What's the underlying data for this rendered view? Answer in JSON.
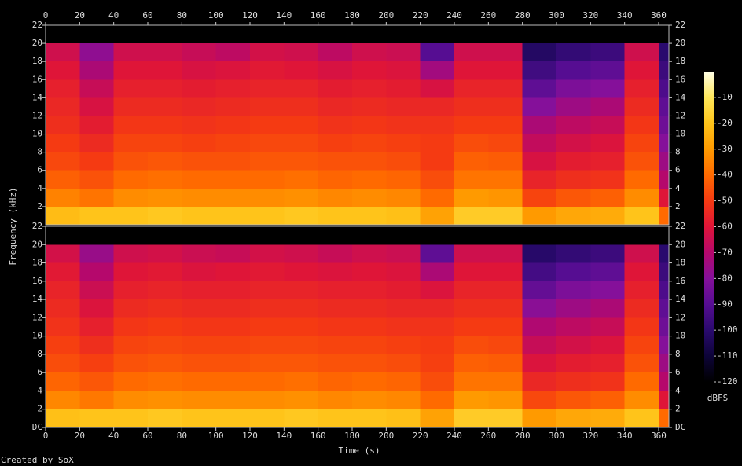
{
  "chart_data": [
    {
      "type": "heatmap",
      "xbins": [
        0,
        20,
        40,
        60,
        80,
        100,
        120,
        140,
        160,
        180,
        200,
        220,
        240,
        260,
        280,
        300,
        320,
        340,
        360,
        366
      ],
      "ybins": [
        0,
        2,
        4,
        6,
        8,
        10,
        12,
        14,
        16,
        18,
        20,
        22
      ],
      "xlim": [
        0,
        366
      ],
      "ylim": [
        0,
        22
      ],
      "xticks": [
        0,
        20,
        40,
        60,
        80,
        100,
        120,
        140,
        160,
        180,
        200,
        220,
        240,
        260,
        280,
        300,
        320,
        340,
        360
      ],
      "yticks": [
        2,
        4,
        6,
        8,
        10,
        12,
        14,
        16,
        18,
        20,
        22
      ],
      "values": [
        [
          -22,
          -35,
          -42,
          -47,
          -50,
          -53,
          -55,
          -57,
          -60,
          -64,
          -120
        ],
        [
          -20,
          -38,
          -45,
          -50,
          -54,
          -58,
          -62,
          -66,
          -72,
          -78,
          -120
        ],
        [
          -20,
          -33,
          -40,
          -45,
          -48,
          -51,
          -54,
          -57,
          -60,
          -64,
          -120
        ],
        [
          -19,
          -32,
          -39,
          -44,
          -48,
          -51,
          -54,
          -57,
          -60,
          -64,
          -120
        ],
        [
          -20,
          -33,
          -40,
          -45,
          -49,
          -52,
          -55,
          -58,
          -62,
          -66,
          -120
        ],
        [
          -20,
          -33,
          -40,
          -45,
          -48,
          -51,
          -54,
          -57,
          -61,
          -68,
          -120
        ],
        [
          -20,
          -33,
          -40,
          -44,
          -47,
          -50,
          -53,
          -56,
          -59,
          -63,
          -120
        ],
        [
          -19,
          -32,
          -39,
          -44,
          -47,
          -50,
          -53,
          -56,
          -60,
          -64,
          -120
        ],
        [
          -20,
          -34,
          -41,
          -45,
          -49,
          -52,
          -55,
          -58,
          -62,
          -68,
          -120
        ],
        [
          -20,
          -33,
          -40,
          -45,
          -48,
          -51,
          -54,
          -57,
          -60,
          -64,
          -120
        ],
        [
          -21,
          -34,
          -41,
          -46,
          -49,
          -52,
          -55,
          -58,
          -61,
          -65,
          -120
        ],
        [
          -28,
          -40,
          -46,
          -50,
          -50,
          -52,
          -55,
          -62,
          -74,
          -90,
          -120
        ],
        [
          -18,
          -30,
          -38,
          -42,
          -46,
          -50,
          -53,
          -56,
          -60,
          -64,
          -120
        ],
        [
          -18,
          -31,
          -38,
          -43,
          -47,
          -50,
          -53,
          -56,
          -60,
          -64,
          -120
        ],
        [
          -30,
          -48,
          -56,
          -62,
          -67,
          -72,
          -80,
          -88,
          -95,
          -102,
          -120
        ],
        [
          -27,
          -44,
          -53,
          -58,
          -63,
          -68,
          -75,
          -82,
          -90,
          -98,
          -120
        ],
        [
          -26,
          -42,
          -52,
          -57,
          -61,
          -66,
          -72,
          -80,
          -88,
          -96,
          -120
        ],
        [
          -20,
          -33,
          -40,
          -45,
          -48,
          -51,
          -54,
          -57,
          -60,
          -64,
          -120
        ],
        [
          -40,
          -60,
          -70,
          -75,
          -80,
          -85,
          -88,
          -92,
          -96,
          -100,
          -120
        ]
      ]
    },
    {
      "type": "heatmap",
      "xlabel": "Time (s)",
      "xbins": [
        0,
        20,
        40,
        60,
        80,
        100,
        120,
        140,
        160,
        180,
        200,
        220,
        240,
        260,
        280,
        300,
        320,
        340,
        360,
        366
      ],
      "ybins": [
        0,
        2,
        4,
        6,
        8,
        10,
        12,
        14,
        16,
        18,
        20,
        22
      ],
      "xlim": [
        0,
        366
      ],
      "ylim": [
        0,
        22
      ],
      "xticks": [
        0,
        20,
        40,
        60,
        80,
        100,
        120,
        140,
        160,
        180,
        200,
        220,
        240,
        260,
        280,
        300,
        320,
        340,
        360
      ],
      "yticks": [
        {
          "value": 0,
          "label": "DC"
        },
        2,
        4,
        6,
        8,
        10,
        12,
        14,
        16,
        18,
        20,
        22
      ],
      "values": [
        [
          -21,
          -34,
          -41,
          -46,
          -49,
          -52,
          -54,
          -56,
          -59,
          -63,
          -120
        ],
        [
          -20,
          -37,
          -44,
          -49,
          -53,
          -57,
          -61,
          -65,
          -70,
          -76,
          -120
        ],
        [
          -20,
          -33,
          -40,
          -45,
          -48,
          -51,
          -54,
          -57,
          -60,
          -64,
          -120
        ],
        [
          -19,
          -32,
          -39,
          -44,
          -47,
          -50,
          -53,
          -56,
          -59,
          -63,
          -120
        ],
        [
          -20,
          -33,
          -40,
          -45,
          -48,
          -51,
          -54,
          -57,
          -61,
          -65,
          -120
        ],
        [
          -20,
          -33,
          -40,
          -45,
          -48,
          -51,
          -54,
          -57,
          -60,
          -66,
          -120
        ],
        [
          -20,
          -33,
          -40,
          -44,
          -47,
          -50,
          -53,
          -56,
          -59,
          -63,
          -120
        ],
        [
          -19,
          -32,
          -39,
          -44,
          -47,
          -50,
          -53,
          -56,
          -60,
          -64,
          -120
        ],
        [
          -20,
          -34,
          -41,
          -45,
          -48,
          -51,
          -54,
          -57,
          -61,
          -66,
          -120
        ],
        [
          -20,
          -33,
          -40,
          -45,
          -48,
          -51,
          -54,
          -57,
          -60,
          -64,
          -120
        ],
        [
          -21,
          -34,
          -41,
          -46,
          -49,
          -52,
          -55,
          -58,
          -61,
          -65,
          -120
        ],
        [
          -28,
          -40,
          -46,
          -49,
          -50,
          -52,
          -55,
          -61,
          -72,
          -88,
          -120
        ],
        [
          -18,
          -30,
          -38,
          -42,
          -46,
          -50,
          -53,
          -56,
          -60,
          -64,
          -120
        ],
        [
          -18,
          -31,
          -38,
          -43,
          -47,
          -50,
          -53,
          -56,
          -60,
          -64,
          -120
        ],
        [
          -30,
          -47,
          -55,
          -61,
          -66,
          -71,
          -79,
          -87,
          -94,
          -101,
          -120
        ],
        [
          -27,
          -44,
          -53,
          -58,
          -63,
          -68,
          -75,
          -82,
          -90,
          -98,
          -120
        ],
        [
          -26,
          -42,
          -52,
          -57,
          -61,
          -66,
          -72,
          -80,
          -88,
          -96,
          -120
        ],
        [
          -20,
          -33,
          -40,
          -45,
          -48,
          -51,
          -54,
          -57,
          -60,
          -64,
          -120
        ],
        [
          -40,
          -60,
          -70,
          -75,
          -80,
          -85,
          -88,
          -92,
          -96,
          -100,
          -120
        ]
      ]
    }
  ],
  "ylabel": "Frequency (kHz)",
  "colorbar": {
    "label": "dBFS",
    "lim": [
      -120,
      0
    ],
    "ticks": [
      -10,
      -20,
      -30,
      -40,
      -50,
      -60,
      -70,
      -80,
      -90,
      -100,
      -110,
      -120
    ],
    "colormap": [
      "#000000",
      "#0d0438",
      "#2a0a6e",
      "#560d92",
      "#85109a",
      "#b5086c",
      "#df1538",
      "#f53a12",
      "#ff6a00",
      "#ff9a00",
      "#ffc41a",
      "#ffe75a",
      "#ffffe8"
    ]
  },
  "footer": "Created by SoX"
}
